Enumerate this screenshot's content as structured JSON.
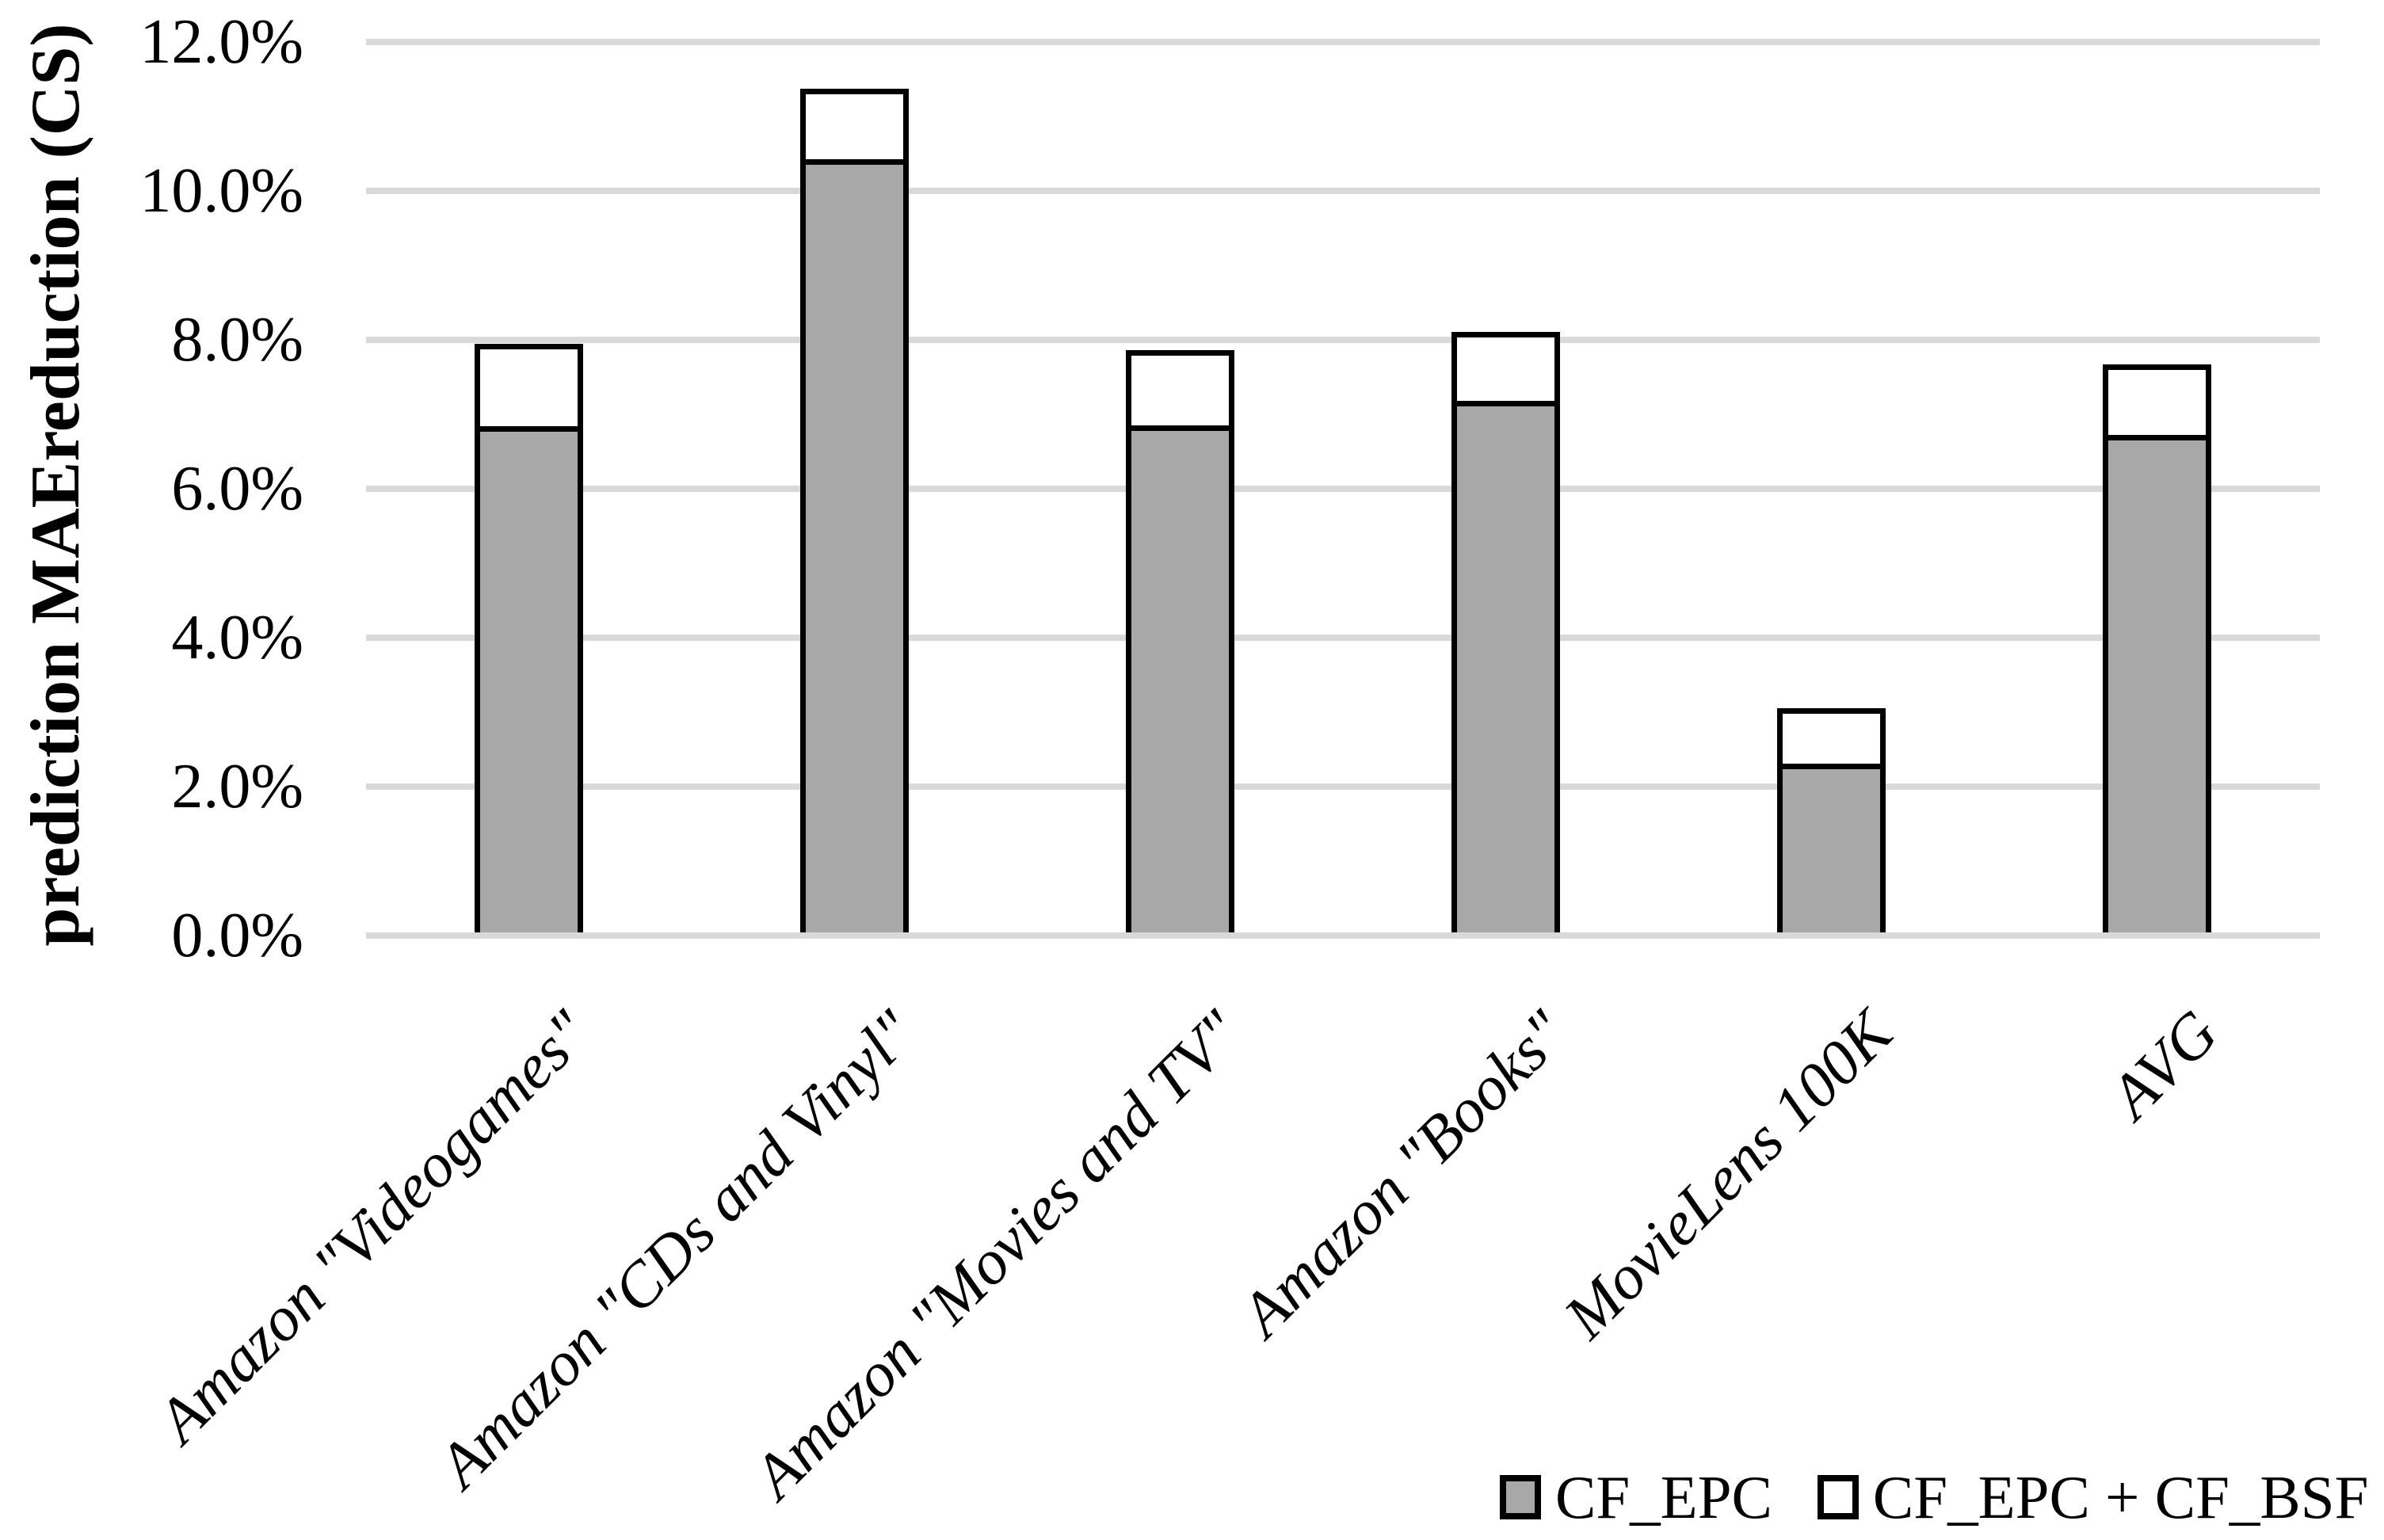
{
  "chart_data": {
    "type": "bar",
    "stacked_overlay": true,
    "title": "",
    "xlabel": "",
    "ylabel": "prediction MAEreduction (CS)",
    "categories": [
      "Amazon \"Videogames\"",
      "Amazon \"CDs and Vinyl\"",
      "Amazon \"Movies and TV\"",
      "Amazon \"Books\"",
      "MovieLens 100K",
      "AVG"
    ],
    "series": [
      {
        "name": "CF_EPC",
        "role": "base-segment",
        "fill": "#a8a8a8",
        "values_pct": [
          6.84,
          10.43,
          6.85,
          7.18,
          2.31,
          6.72
        ]
      },
      {
        "name": "CF_EPC + CF_BSF",
        "role": "total-height",
        "fill": "#ffffff",
        "values_pct": [
          7.95,
          11.37,
          7.86,
          8.11,
          3.05,
          7.67
        ]
      }
    ],
    "y_axis": {
      "min_pct": 0,
      "max_pct": 12,
      "tick_step_pct": 2,
      "tick_labels": [
        "0.0%",
        "2.0%",
        "4.0%",
        "6.0%",
        "8.0%",
        "10.0%",
        "12.0%"
      ]
    },
    "grid": "horizontal",
    "legend_position": "bottom-right",
    "legend": [
      {
        "label": "CF_EPC",
        "swatch": "#a8a8a8"
      },
      {
        "label": "CF_EPC + CF_BSF",
        "swatch": "#ffffff"
      }
    ],
    "colors": {
      "bar_border": "#000000",
      "gridline": "#d9d9d9",
      "text": "#000000",
      "background": "#ffffff"
    }
  }
}
